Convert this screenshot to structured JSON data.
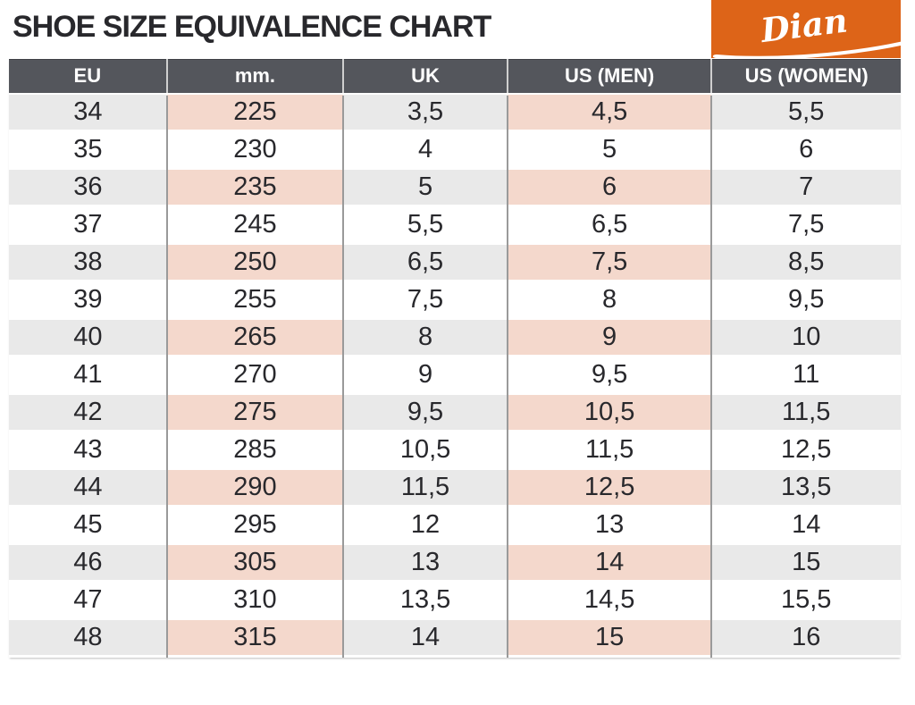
{
  "colors": {
    "brand_orange": "#DD6418",
    "header_bg": "#54565C",
    "row_gray": "#E9E9E9",
    "row_pink": "#F4D8CC",
    "separator": "#9A9A9A",
    "text": "#28282C"
  },
  "brand": {
    "name": "Dian"
  },
  "chart_data": {
    "type": "table",
    "title": "SHOE SIZE EQUIVALENCE CHART",
    "columns": [
      "EU",
      "mm.",
      "UK",
      "US (MEN)",
      "US (WOMEN)"
    ],
    "rows": [
      [
        "34",
        "225",
        "3,5",
        "4,5",
        "5,5"
      ],
      [
        "35",
        "230",
        "4",
        "5",
        "6"
      ],
      [
        "36",
        "235",
        "5",
        "6",
        "7"
      ],
      [
        "37",
        "245",
        "5,5",
        "6,5",
        "7,5"
      ],
      [
        "38",
        "250",
        "6,5",
        "7,5",
        "8,5"
      ],
      [
        "39",
        "255",
        "7,5",
        "8",
        "9,5"
      ],
      [
        "40",
        "265",
        "8",
        "9",
        "10"
      ],
      [
        "41",
        "270",
        "9",
        "9,5",
        "11"
      ],
      [
        "42",
        "275",
        "9,5",
        "10,5",
        "11,5"
      ],
      [
        "43",
        "285",
        "10,5",
        "11,5",
        "12,5"
      ],
      [
        "44",
        "290",
        "11,5",
        "12,5",
        "13,5"
      ],
      [
        "45",
        "295",
        "12",
        "13",
        "14"
      ],
      [
        "46",
        "305",
        "13",
        "14",
        "15"
      ],
      [
        "47",
        "310",
        "13,5",
        "14,5",
        "15,5"
      ],
      [
        "48",
        "315",
        "14",
        "15",
        "16"
      ]
    ],
    "layout": {
      "banded_rows": "every other row starting with the first",
      "tinted_columns": [
        "mm.",
        "US (MEN)"
      ],
      "legend": "none",
      "grid": "column separators only"
    }
  }
}
